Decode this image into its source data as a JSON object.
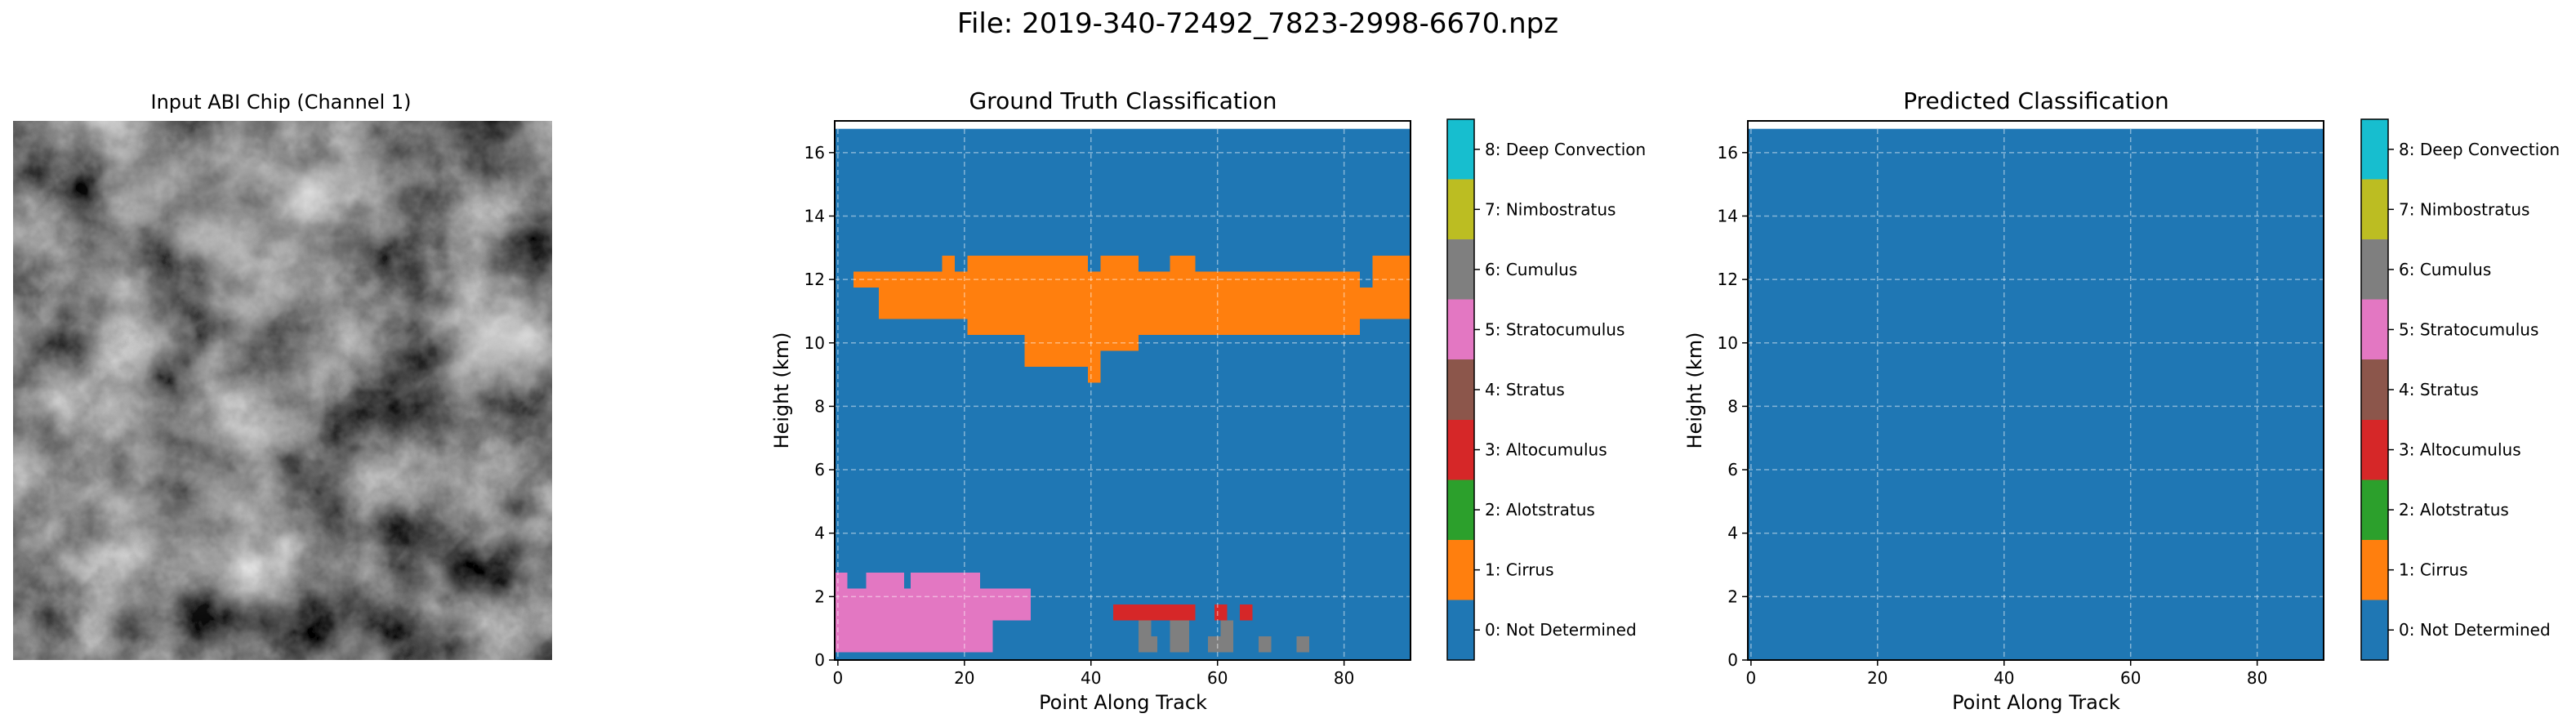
{
  "figure": {
    "suptitle": "File: 2019-340-72492_7823-2998-6670.npz"
  },
  "chart_data": [
    {
      "type": "image",
      "title": "Input ABI Chip (Channel 1)",
      "colormap": "gray",
      "axes": "off"
    },
    {
      "type": "heatmap",
      "title": "Ground Truth Classification",
      "xlabel": "Point Along Track",
      "ylabel": "Height (km)",
      "xlim": [
        -0.5,
        90.5
      ],
      "ylim": [
        0,
        17
      ],
      "data_top": 16.75,
      "xticks": [
        0,
        20,
        40,
        60,
        80
      ],
      "yticks": [
        0,
        2,
        4,
        6,
        8,
        10,
        12,
        14,
        16
      ],
      "grid": true,
      "background_class": 0,
      "cells": [
        {
          "class": 5,
          "x": [
            0,
            2
          ],
          "y": [
            0.25,
            2.75
          ]
        },
        {
          "class": 5,
          "x": [
            2,
            5
          ],
          "y": [
            0.25,
            2.25
          ]
        },
        {
          "class": 5,
          "x": [
            5,
            11
          ],
          "y": [
            0.25,
            2.75
          ]
        },
        {
          "class": 5,
          "x": [
            11,
            12
          ],
          "y": [
            0.25,
            2.25
          ]
        },
        {
          "class": 5,
          "x": [
            12,
            23
          ],
          "y": [
            0.25,
            2.75
          ]
        },
        {
          "class": 5,
          "x": [
            23,
            25
          ],
          "y": [
            0.25,
            2.25
          ]
        },
        {
          "class": 5,
          "x": [
            25,
            31
          ],
          "y": [
            1.25,
            2.25
          ]
        },
        {
          "class": 5,
          "x": [
            0,
            24
          ],
          "y": [
            0.25,
            0.75
          ]
        },
        {
          "class": 1,
          "x": [
            3,
            7
          ],
          "y": [
            11.75,
            12.25
          ]
        },
        {
          "class": 1,
          "x": [
            7,
            17
          ],
          "y": [
            10.75,
            12.25
          ]
        },
        {
          "class": 1,
          "x": [
            17,
            19
          ],
          "y": [
            10.75,
            12.75
          ]
        },
        {
          "class": 1,
          "x": [
            19,
            21
          ],
          "y": [
            10.75,
            12.25
          ]
        },
        {
          "class": 1,
          "x": [
            21,
            30
          ],
          "y": [
            10.25,
            12.75
          ]
        },
        {
          "class": 1,
          "x": [
            30,
            32
          ],
          "y": [
            9.25,
            12.75
          ]
        },
        {
          "class": 1,
          "x": [
            32,
            40
          ],
          "y": [
            9.25,
            12.75
          ]
        },
        {
          "class": 1,
          "x": [
            40,
            42
          ],
          "y": [
            8.75,
            12.25
          ]
        },
        {
          "class": 1,
          "x": [
            42,
            48
          ],
          "y": [
            9.75,
            12.75
          ]
        },
        {
          "class": 1,
          "x": [
            48,
            53
          ],
          "y": [
            10.25,
            12.25
          ]
        },
        {
          "class": 1,
          "x": [
            53,
            57
          ],
          "y": [
            10.25,
            12.75
          ]
        },
        {
          "class": 1,
          "x": [
            57,
            83
          ],
          "y": [
            10.25,
            12.25
          ]
        },
        {
          "class": 1,
          "x": [
            83,
            85
          ],
          "y": [
            10.75,
            11.75
          ]
        },
        {
          "class": 1,
          "x": [
            85,
            87
          ],
          "y": [
            10.75,
            12.75
          ]
        },
        {
          "class": 1,
          "x": [
            87,
            91
          ],
          "y": [
            10.75,
            12.75
          ]
        },
        {
          "class": 3,
          "x": [
            44,
            57
          ],
          "y": [
            1.25,
            1.75
          ]
        },
        {
          "class": 3,
          "x": [
            60,
            62
          ],
          "y": [
            1.25,
            1.75
          ]
        },
        {
          "class": 3,
          "x": [
            64,
            66
          ],
          "y": [
            1.25,
            1.75
          ]
        },
        {
          "class": 6,
          "x": [
            48,
            50
          ],
          "y": [
            0.25,
            1.25
          ]
        },
        {
          "class": 6,
          "x": [
            50,
            51
          ],
          "y": [
            0.25,
            0.75
          ]
        },
        {
          "class": 6,
          "x": [
            53,
            56
          ],
          "y": [
            0.25,
            1.25
          ]
        },
        {
          "class": 6,
          "x": [
            59,
            61
          ],
          "y": [
            0.25,
            0.75
          ]
        },
        {
          "class": 6,
          "x": [
            61,
            63
          ],
          "y": [
            0.25,
            1.25
          ]
        },
        {
          "class": 6,
          "x": [
            67,
            69
          ],
          "y": [
            0.25,
            0.75
          ]
        },
        {
          "class": 6,
          "x": [
            73,
            75
          ],
          "y": [
            0.25,
            0.75
          ]
        }
      ]
    },
    {
      "type": "heatmap",
      "title": "Predicted Classification",
      "xlabel": "Point Along Track",
      "ylabel": "Height (km)",
      "xlim": [
        -0.5,
        90.5
      ],
      "ylim": [
        0,
        17
      ],
      "data_top": 16.75,
      "xticks": [
        0,
        20,
        40,
        60,
        80
      ],
      "yticks": [
        0,
        2,
        4,
        6,
        8,
        10,
        12,
        14,
        16
      ],
      "grid": true,
      "background_class": 0,
      "cells": []
    }
  ],
  "colorbar": {
    "classes": [
      {
        "id": 0,
        "label": "0: Not Determined",
        "color": "#1f77b4"
      },
      {
        "id": 1,
        "label": "1: Cirrus",
        "color": "#ff7f0e"
      },
      {
        "id": 2,
        "label": "2: Alotstratus",
        "color": "#2ca02c"
      },
      {
        "id": 3,
        "label": "3: Altocumulus",
        "color": "#d62728"
      },
      {
        "id": 4,
        "label": "4: Stratus",
        "color": "#8c564b"
      },
      {
        "id": 5,
        "label": "5: Stratocumulus",
        "color": "#e377c2"
      },
      {
        "id": 6,
        "label": "6: Cumulus",
        "color": "#7f7f7f"
      },
      {
        "id": 7,
        "label": "7: Nimbostratus",
        "color": "#bcbd22"
      },
      {
        "id": 8,
        "label": "8: Deep Convection",
        "color": "#17becf"
      }
    ]
  }
}
